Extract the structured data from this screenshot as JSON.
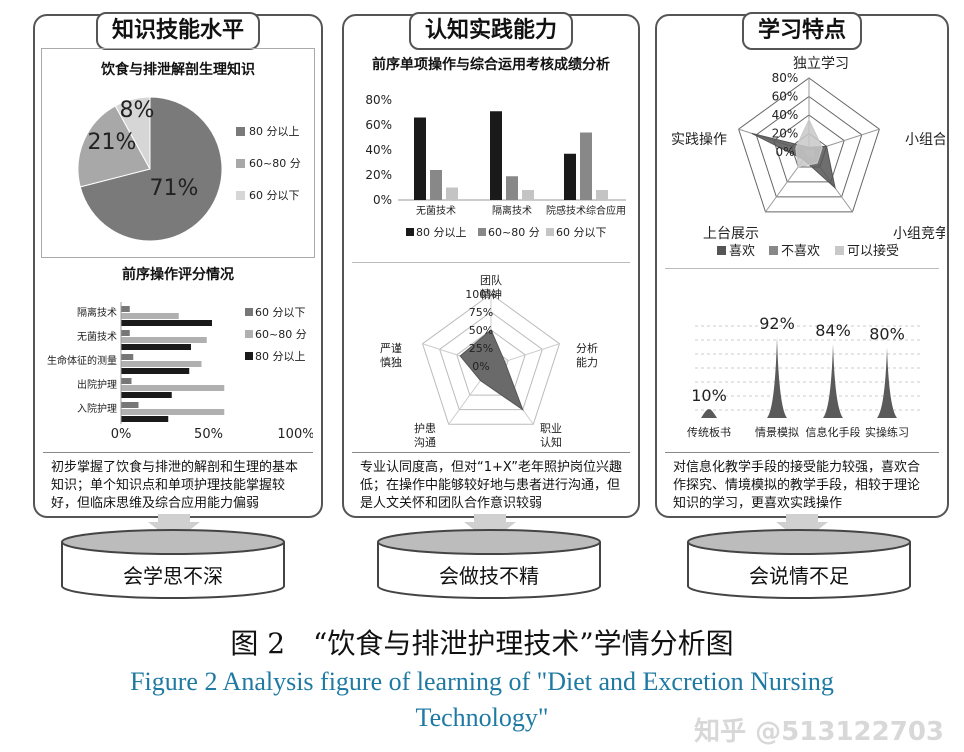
{
  "panels": {
    "knowledge": {
      "title": "知识技能水平",
      "pie": {
        "title": "饮食与排泄解剖生理知识",
        "legend": [
          "80 分以上",
          "60~80 分",
          "60 分以下"
        ]
      },
      "hbar": {
        "title": "前序操作评分情况",
        "legend": [
          "60 分以下",
          "60~80 分",
          "80 分以上"
        ],
        "axis_ticks": [
          "0%",
          "50%",
          "100%"
        ]
      },
      "summary": "初步掌握了饮食与排泄的解剖和生理的基本知识；单个知识点和单项护理技能掌握较好，但临床思维及综合应用能力偏弱"
    },
    "cognition": {
      "title": "认知实践能力",
      "vbar": {
        "title": "前序单项操作与综合运用考核成绩分析",
        "legend": [
          "80 分以上",
          "60~80 分",
          "60 分以下"
        ]
      },
      "radar": {
        "axes": [
          "团队精神",
          "分析能力",
          "职业认知",
          "护患沟通",
          "严谨慎独"
        ],
        "levels": [
          "100%",
          "75%",
          "50%",
          "25%",
          "0%"
        ]
      },
      "summary": "专业认同度高，但对“1+X”老年照护岗位兴趣低；在操作中能够较好地与患者进行沟通，但是人文关怀和团队合作意识较弱"
    },
    "learning": {
      "title": "学习特点",
      "radar": {
        "axes": [
          "独立学习",
          "小组合作",
          "小组竞争",
          "上台展示",
          "实践操作"
        ],
        "levels": [
          "80%",
          "60%",
          "40%",
          "20%",
          "0%"
        ],
        "legend": [
          "喜欢",
          "不喜欢",
          "可以接受"
        ]
      },
      "summary": "对信息化教学手段的接受能力较强，喜欢合作探究、情境模拟的教学手段，相较于理论知识的学习，更喜欢实践操作"
    }
  },
  "outcomes": [
    "会学思不深",
    "会做技不精",
    "会说情不足"
  ],
  "caption": {
    "cn": "图 2　“饮食与排泄护理技术”学情分析图",
    "en_line1": "Figure 2  Analysis figure of learning of \"Diet and Excretion Nursing",
    "en_line2": "Technology\""
  },
  "watermark": "知乎 @513122703",
  "chart_data": [
    {
      "type": "pie",
      "title": "饮食与排泄解剖生理知识",
      "categories": [
        "80 分以上",
        "60~80 分",
        "60 分以下"
      ],
      "values": [
        71,
        21,
        8
      ],
      "labels": [
        "71%",
        "21%",
        "8%"
      ],
      "colors": [
        "#7a7a7a",
        "#a8a8a8",
        "#d6d6d6"
      ]
    },
    {
      "type": "bar",
      "orientation": "horizontal",
      "title": "前序操作评分情况",
      "categories": [
        "隔离技术",
        "无菌技术",
        "生命体征的测量",
        "出院护理",
        "入院护理"
      ],
      "series": [
        {
          "name": "60 分以下",
          "values": [
            5,
            5,
            7,
            6,
            10
          ],
          "color": "#777777"
        },
        {
          "name": "60~80 分",
          "values": [
            33,
            49,
            46,
            59,
            59
          ],
          "color": "#b0b0b0"
        },
        {
          "name": "80 分以上",
          "values": [
            52,
            40,
            39,
            29,
            27
          ],
          "color": "#1a1a1a"
        }
      ],
      "xlim": [
        0,
        100
      ]
    },
    {
      "type": "bar",
      "title": "前序单项操作与综合运用考核成绩分析",
      "categories": [
        "无菌技术",
        "隔离技术",
        "院感技术综合应用"
      ],
      "series": [
        {
          "name": "80 分以上",
          "values": [
            66,
            71,
            37
          ],
          "color": "#1a1a1a"
        },
        {
          "name": "60~80 分",
          "values": [
            24,
            19,
            54
          ],
          "color": "#888888"
        },
        {
          "name": "60 分以下",
          "values": [
            10,
            8,
            8
          ],
          "color": "#c4c4c4"
        }
      ],
      "y_ticks": [
        "0%",
        "20%",
        "40%",
        "60%",
        "80%"
      ],
      "ylim": [
        0,
        80
      ]
    },
    {
      "type": "radar",
      "axes": [
        "团队精神",
        "分析能力",
        "职业认知",
        "护患沟通",
        "严谨慎独"
      ],
      "values": [
        50,
        20,
        75,
        25,
        45
      ],
      "rmax": 100
    },
    {
      "type": "radar",
      "axes": [
        "独立学习",
        "小组合作",
        "小组竞争",
        "上台展示",
        "实践操作"
      ],
      "series": [
        {
          "name": "喜欢",
          "values": [
            5,
            20,
            48,
            10,
            65
          ],
          "color": "#555555"
        },
        {
          "name": "不喜欢",
          "values": [
            2,
            5,
            8,
            4,
            5
          ],
          "color": "#888888"
        },
        {
          "name": "可以接受",
          "values": [
            35,
            15,
            15,
            20,
            15
          ],
          "color": "#c8c8c8"
        }
      ],
      "rmax": 80
    },
    {
      "type": "bar",
      "style": "spike",
      "categories": [
        "传统板书",
        "情景模拟",
        "信息化手段",
        "实操练习"
      ],
      "values": [
        10,
        92,
        84,
        80
      ],
      "labels": [
        "10%",
        "92%",
        "84%",
        "80%"
      ]
    }
  ]
}
